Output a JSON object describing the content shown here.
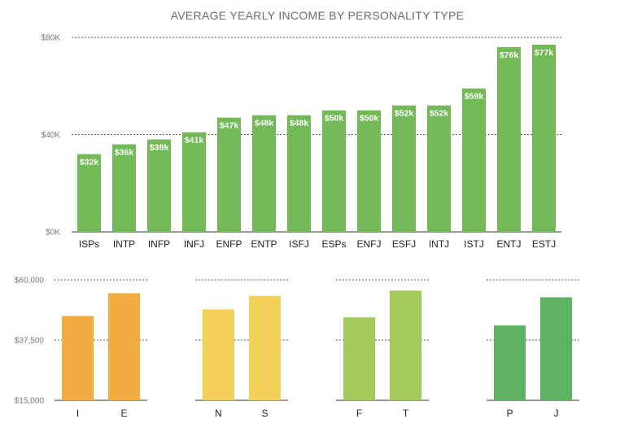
{
  "chart_data": [
    {
      "type": "bar",
      "title": "AVERAGE YEARLY INCOME BY PERSONALITY TYPE",
      "categories": [
        "ISPs",
        "INTP",
        "INFP",
        "INFJ",
        "ENFP",
        "ENTP",
        "ISFJ",
        "ESPs",
        "ENFJ",
        "ESFJ",
        "INTJ",
        "ISTJ",
        "ENTJ",
        "ESTJ"
      ],
      "values": [
        32,
        36,
        38,
        41,
        47,
        48,
        48,
        50,
        50,
        52,
        52,
        59,
        76,
        77
      ],
      "data_labels": [
        "$32k",
        "$36k",
        "$38k",
        "$41k",
        "$47k",
        "$48k",
        "$48k",
        "$50k",
        "$50k",
        "$52k",
        "$52k",
        "$59k",
        "$76k",
        "$77k"
      ],
      "ylim": [
        0,
        80
      ],
      "yticks": [
        0,
        40,
        80
      ],
      "ytick_labels": [
        "$0K",
        "$40K",
        "$80K"
      ],
      "color": "#74b957",
      "grid": true
    },
    {
      "type": "bar",
      "ylim": [
        15000,
        60000
      ],
      "yticks": [
        15000,
        37500,
        60000
      ],
      "ytick_labels": [
        "$15,000",
        "$37,500",
        "$60,000"
      ],
      "grid": true,
      "groups": [
        {
          "categories": [
            "I",
            "E"
          ],
          "values": [
            46500,
            55000
          ],
          "color": "#f1ad3f"
        },
        {
          "categories": [
            "N",
            "S"
          ],
          "values": [
            49000,
            54000
          ],
          "color": "#f3d158"
        },
        {
          "categories": [
            "F",
            "T"
          ],
          "values": [
            46000,
            56000
          ],
          "color": "#a3c95a"
        },
        {
          "categories": [
            "P",
            "J"
          ],
          "values": [
            43000,
            53500
          ],
          "color": "#5db362"
        }
      ]
    }
  ]
}
